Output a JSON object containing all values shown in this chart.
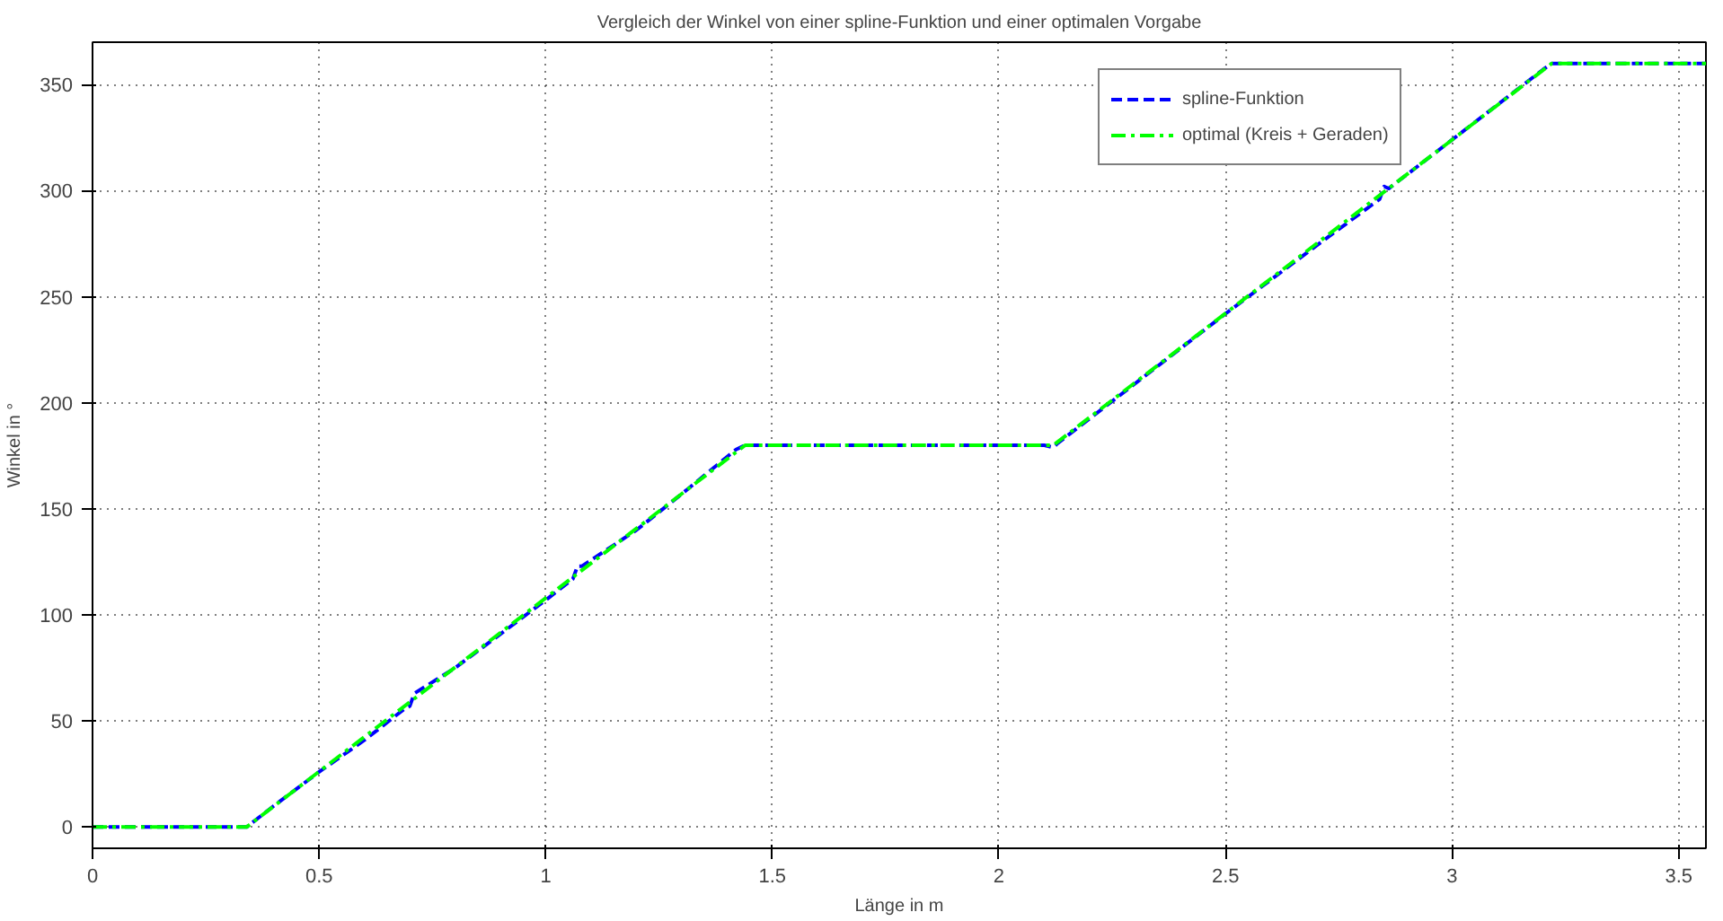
{
  "chart_data": {
    "type": "line",
    "title": "Vergleich der Winkel von einer spline-Funktion und einer optimalen Vorgabe",
    "xlabel": "Länge in m",
    "ylabel": "Winkel in °",
    "xlim": [
      0,
      3.56
    ],
    "ylim": [
      -10,
      370
    ],
    "xticks": [
      0,
      0.5,
      1,
      1.5,
      2,
      2.5,
      3,
      3.5
    ],
    "yticks": [
      0,
      50,
      100,
      150,
      200,
      250,
      300,
      350
    ],
    "grid": true,
    "legend": "top right",
    "series": [
      {
        "name": "spline-Funktion",
        "color": "#0000ff",
        "line_style": "dashed",
        "x": [
          0,
          0.34,
          0.4,
          0.5,
          0.6,
          0.69,
          0.7,
          0.71,
          0.8,
          0.9,
          1.0,
          1.06,
          1.07,
          1.08,
          1.2,
          1.3,
          1.42,
          1.44,
          2.1,
          2.12,
          2.13,
          2.3,
          2.5,
          2.7,
          2.84,
          2.85,
          2.86,
          3.0,
          3.2,
          3.22,
          3.56
        ],
        "values": [
          0,
          0,
          10,
          26,
          41,
          56,
          57,
          63,
          75,
          91,
          107,
          117,
          123,
          123,
          140,
          157,
          178,
          180,
          180,
          179,
          181,
          209,
          242,
          274,
          296,
          302,
          301,
          324,
          357,
          360,
          360
        ]
      },
      {
        "name": "optimal (Kreis + Geraden)",
        "color": "#00ff00",
        "line_style": "dashdot",
        "x": [
          0,
          0.34,
          1.44,
          2.12,
          3.22,
          3.56
        ],
        "values": [
          0,
          0,
          180,
          180,
          360,
          360
        ]
      }
    ]
  }
}
